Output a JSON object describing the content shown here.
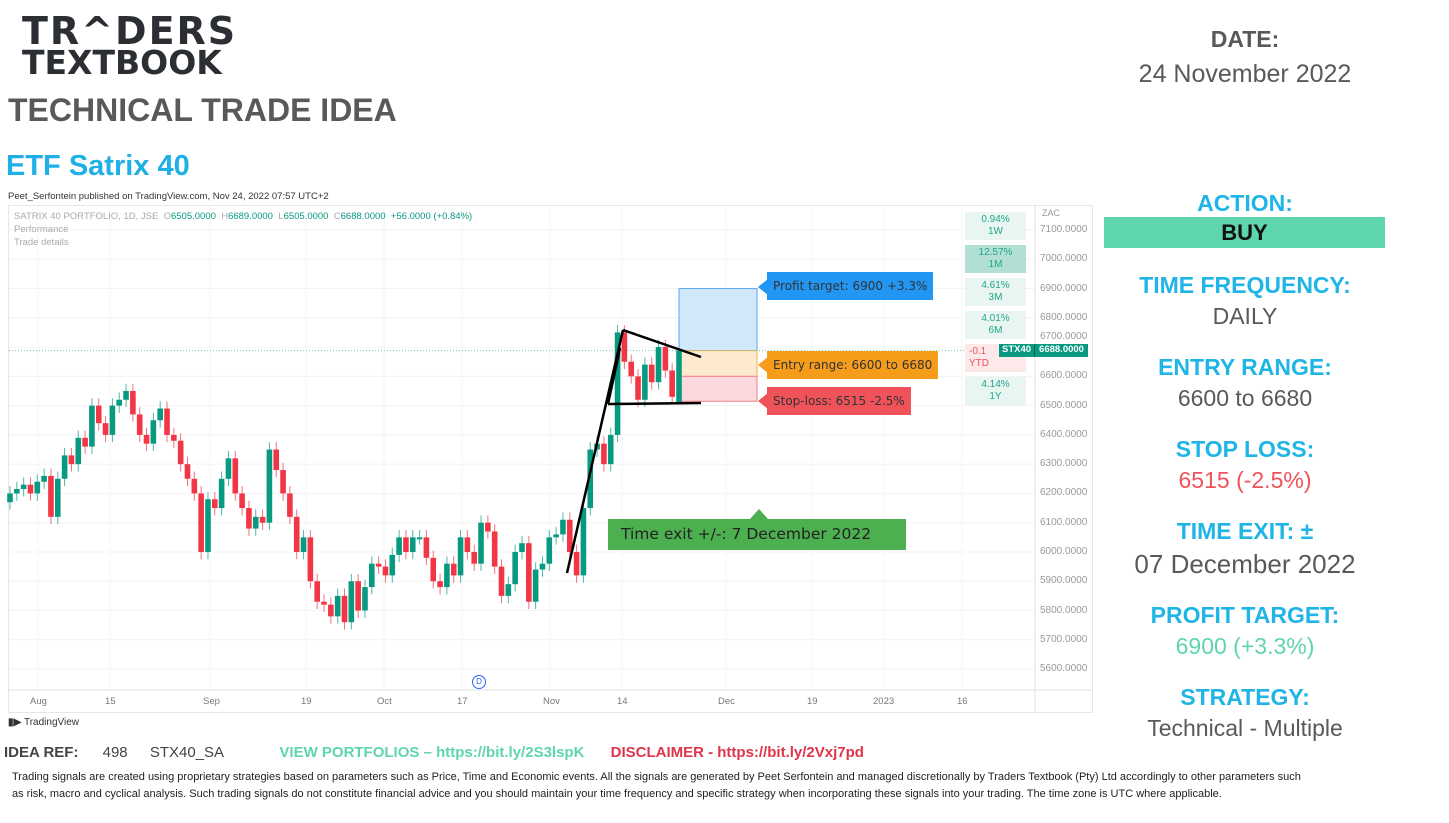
{
  "brand": {
    "logo_line1": "TR^DERS",
    "logo_line2": "TEXTBOOK",
    "heading": "TECHNICAL TRADE IDEA",
    "instrument": "ETF Satrix 40"
  },
  "chart": {
    "published": "Peet_Serfontein published on TradingView.com, Nov 24, 2022 07:57 UTC+2",
    "symbol_line": "SATRIX 40 PORTFOLIO, 1D, JSE",
    "ohlc": {
      "o_label": "O",
      "o": "6505.0000",
      "h_label": "H",
      "h": "6689.0000",
      "l_label": "L",
      "l": "6505.0000",
      "c_label": "C",
      "c": "6688.0000",
      "change": "+56.0000 (+0.84%)"
    },
    "performance_label": "Performance",
    "trade_details_label": "Trade details",
    "currency": "ZAC",
    "performance": [
      {
        "value": "0.94%",
        "period": "1W"
      },
      {
        "value": "12.57%",
        "period": "1M"
      },
      {
        "value": "4.61%",
        "period": "3M"
      },
      {
        "value": "4.01%",
        "period": "6M"
      },
      {
        "value": "-0.1",
        "period": "YTD"
      },
      {
        "value": "4.14%",
        "period": "1Y"
      }
    ],
    "price_tag": {
      "symbol": "STX40",
      "price": "6688.0000"
    },
    "annotations": {
      "profit": "Profit target: 6900 +3.3%",
      "entry": "Entry range: 6600 to 6680",
      "stop": "Stop-loss: 6515 -2.5%",
      "time_exit": "Time exit +/-: 7 December 2022"
    },
    "dividend_marker": "D",
    "tv_logo": "TradingView",
    "colors": {
      "up": "#089981",
      "down": "#f23645",
      "profit": "#2196f3",
      "entry": "#f59c1a",
      "stop": "#f0525a",
      "time_exit": "#4caf50"
    }
  },
  "chart_data": {
    "type": "candlestick",
    "y_ticks": [
      "7100.0000",
      "7000.0000",
      "6900.0000",
      "6800.0000",
      "6700.0000",
      "6600.0000",
      "6500.0000",
      "6400.0000",
      "6300.0000",
      "6200.0000",
      "6100.0000",
      "6000.0000",
      "5900.0000",
      "5800.0000",
      "5700.0000",
      "5600.0000"
    ],
    "ylim": [
      5600,
      7100
    ],
    "x_ticks": [
      "Aug",
      "15",
      "Sep",
      "19",
      "Oct",
      "17",
      "Nov",
      "14",
      "Dec",
      "19",
      "2023",
      "16"
    ],
    "closes": [
      6200,
      6215,
      6230,
      6200,
      6240,
      6260,
      6120,
      6250,
      6330,
      6300,
      6390,
      6360,
      6500,
      6440,
      6400,
      6500,
      6520,
      6550,
      6470,
      6400,
      6370,
      6450,
      6490,
      6400,
      6380,
      6300,
      6250,
      6200,
      6000,
      6180,
      6150,
      6250,
      6320,
      6200,
      6150,
      6080,
      6120,
      6100,
      6350,
      6280,
      6200,
      6120,
      6000,
      6050,
      5900,
      5830,
      5820,
      5780,
      5850,
      5760,
      5900,
      5800,
      5880,
      5960,
      5950,
      5920,
      5990,
      6050,
      6000,
      6050,
      6050,
      5980,
      5900,
      5880,
      5960,
      5920,
      6050,
      6000,
      5960,
      6100,
      6070,
      5950,
      5850,
      5890,
      6000,
      6030,
      5830,
      5940,
      5960,
      6050,
      6060,
      6110,
      6000,
      5920,
      6150,
      6350,
      6370,
      6300,
      6400,
      6750,
      6650,
      6600,
      6520,
      6640,
      6580,
      6700,
      6620,
      6530,
      6688
    ],
    "last_candle": {
      "open": 6505,
      "high": 6689,
      "low": 6505,
      "close": 6688
    },
    "levels": {
      "profit_target": 6900,
      "entry_low": 6600,
      "entry_high": 6680,
      "stop_loss": 6515,
      "current": 6688
    }
  },
  "right": {
    "date_label": "DATE:",
    "date": "24 November 2022",
    "action_label": "ACTION:",
    "action": "BUY",
    "action_color": "#5dd6ae",
    "freq_label": "TIME FREQUENCY:",
    "freq": "DAILY",
    "entry_label": "ENTRY RANGE:",
    "entry": "6600 to 6680",
    "stop_label": "STOP LOSS:",
    "stop": "6515 (-2.5%)",
    "stop_color": "#f0525a",
    "exit_label": "TIME EXIT: ±",
    "exit": "07 December 2022",
    "profit_label": "PROFIT TARGET:",
    "profit": "6900 (+3.3%)",
    "profit_color": "#5dd6ae",
    "strategy_label": "STRATEGY:",
    "strategy": "Technical - Multiple"
  },
  "footer": {
    "ref_label": "IDEA REF:",
    "ref_num": "498",
    "ref_code": "STX40_SA",
    "portfolios": "VIEW PORTFOLIOS – https://bit.ly/2S3lspK",
    "disclaimer": "DISCLAIMER -  https://bit.ly/2Vxj7pd",
    "text": "Trading signals are created using proprietary strategies based on parameters such as Price, Time and Economic events.  All the signals are generated by Peet Serfontein and managed discretionally by Traders Textbook (Pty) Ltd accordingly to other parameters such as risk, macro and cyclical analysis. Such trading signals do not constitute financial advice and you should maintain your time frequency and specific strategy when incorporating these signals into your trading. The time zone is UTC where applicable."
  }
}
